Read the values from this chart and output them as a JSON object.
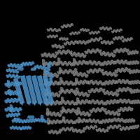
{
  "background_color": "#000000",
  "gray_color": "#7a7a7a",
  "blue_color": "#4a8bbf",
  "fig_width": 2.0,
  "fig_height": 2.0,
  "dpi": 100,
  "image_size": 200
}
